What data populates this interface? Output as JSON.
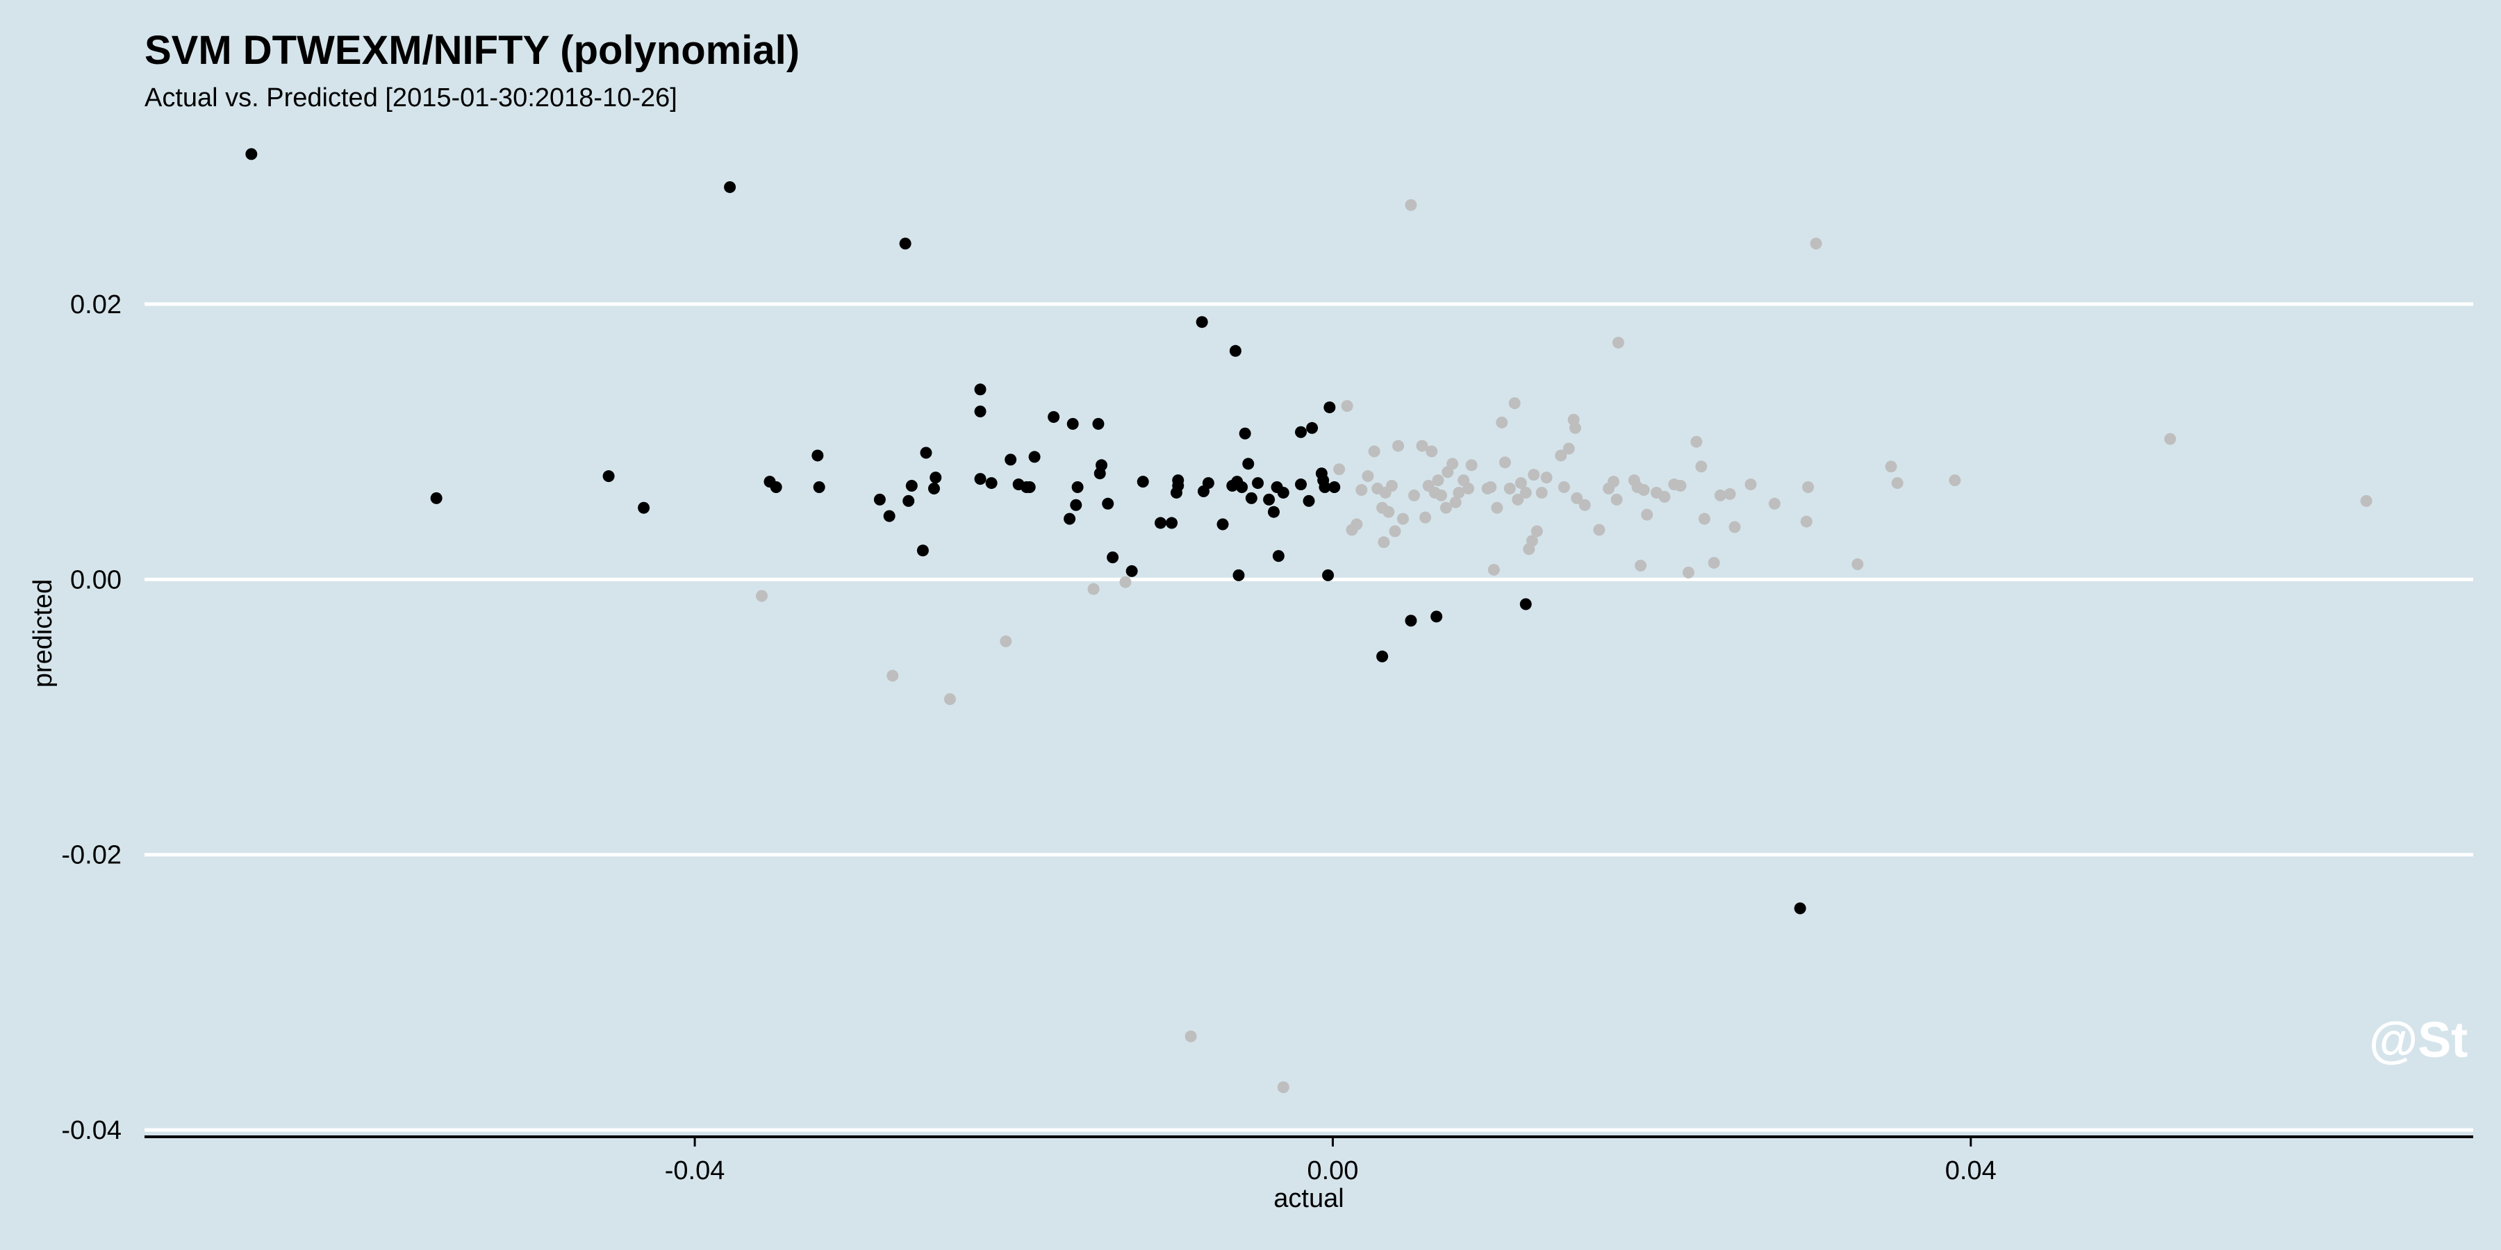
{
  "chart_data": {
    "type": "scatter",
    "title": "SVM DTWEXM/NIFTY (polynomial)",
    "subtitle": "Actual vs. Predicted [2015-01-30:2018-10-26]",
    "xlabel": "actual",
    "ylabel": "predicted",
    "watermark": "@St",
    "xlim": [
      -0.0745,
      0.0715
    ],
    "ylim": [
      -0.0405,
      0.0315
    ],
    "x_ticks": [
      -0.04,
      0.0,
      0.04
    ],
    "x_tick_labels": [
      "-0.04",
      "0.00",
      "0.04"
    ],
    "y_ticks": [
      -0.04,
      -0.02,
      0.0,
      0.02
    ],
    "y_tick_labels": [
      "-0.04",
      "-0.02",
      "0.00",
      "0.02"
    ],
    "grid": "horizontal",
    "colors": {
      "background": "#d5e4eb",
      "gridline": "#ffffff",
      "axis": "#000000",
      "text": "#000000",
      "watermark": "#ffffff"
    },
    "series": [
      {
        "color": "#000000",
        "points": [
          [
            -0.0678,
            0.0309
          ],
          [
            -0.0562,
            0.0059
          ],
          [
            -0.0454,
            0.0075
          ],
          [
            -0.0432,
            0.0052
          ],
          [
            -0.0378,
            0.0285
          ],
          [
            -0.0353,
            0.0071
          ],
          [
            -0.0349,
            0.0067
          ],
          [
            -0.0323,
            0.009
          ],
          [
            -0.0322,
            0.0067
          ],
          [
            -0.0284,
            0.0058
          ],
          [
            -0.0278,
            0.0046
          ],
          [
            -0.0268,
            0.0244
          ],
          [
            -0.0266,
            0.0057
          ],
          [
            -0.0264,
            0.0068
          ],
          [
            -0.0257,
            0.0021
          ],
          [
            -0.0255,
            0.0092
          ],
          [
            -0.025,
            0.0066
          ],
          [
            -0.0249,
            0.0074
          ],
          [
            -0.0221,
            0.0138
          ],
          [
            -0.0221,
            0.0122
          ],
          [
            -0.0221,
            0.0073
          ],
          [
            -0.0214,
            0.007
          ],
          [
            -0.0202,
            0.0087
          ],
          [
            -0.0197,
            0.0069
          ],
          [
            -0.0192,
            0.0067
          ],
          [
            -0.019,
            0.0067
          ],
          [
            -0.0187,
            0.0089
          ],
          [
            -0.0175,
            0.0118
          ],
          [
            -0.0165,
            0.0044
          ],
          [
            -0.0163,
            0.0113
          ],
          [
            -0.0161,
            0.0054
          ],
          [
            -0.016,
            0.0067
          ],
          [
            -0.0147,
            0.0113
          ],
          [
            -0.0146,
            0.0077
          ],
          [
            -0.0145,
            0.0083
          ],
          [
            -0.0141,
            0.0055
          ],
          [
            -0.0138,
            0.0016
          ],
          [
            -0.0126,
            0.0006
          ],
          [
            -0.0119,
            0.0071
          ],
          [
            -0.0108,
            0.0041
          ],
          [
            -0.0101,
            0.0041
          ],
          [
            -0.0098,
            0.0063
          ],
          [
            -0.0097,
            0.0068
          ],
          [
            -0.0097,
            0.0072
          ],
          [
            -0.0082,
            0.0187
          ],
          [
            -0.0081,
            0.0064
          ],
          [
            -0.0078,
            0.007
          ],
          [
            -0.0069,
            0.004
          ],
          [
            -0.0063,
            0.0068
          ],
          [
            -0.0061,
            0.0166
          ],
          [
            -0.006,
            0.0071
          ],
          [
            -0.0059,
            0.0003
          ],
          [
            -0.0057,
            0.0067
          ],
          [
            -0.0055,
            0.0106
          ],
          [
            -0.0053,
            0.0084
          ],
          [
            -0.0051,
            0.0059
          ],
          [
            -0.0047,
            0.007
          ],
          [
            -0.004,
            0.0058
          ],
          [
            -0.0037,
            0.0049
          ],
          [
            -0.0035,
            0.0067
          ],
          [
            -0.0034,
            0.0017
          ],
          [
            -0.0031,
            0.0063
          ],
          [
            -0.002,
            0.0107
          ],
          [
            -0.002,
            0.0069
          ],
          [
            -0.0015,
            0.0057
          ],
          [
            -0.0013,
            0.011
          ],
          [
            -0.0007,
            0.0077
          ],
          [
            -0.0006,
            0.0072
          ],
          [
            -0.0005,
            0.0067
          ],
          [
            -0.0003,
            0.0003
          ],
          [
            -0.0002,
            0.0125
          ],
          [
            0.0001,
            0.0067
          ],
          [
            0.0031,
            -0.0056
          ],
          [
            0.0049,
            -0.003
          ],
          [
            0.0065,
            -0.0027
          ],
          [
            0.0121,
            -0.0018
          ],
          [
            0.0293,
            -0.0239
          ]
        ]
      },
      {
        "color": "#bebebe",
        "points": [
          [
            -0.0358,
            -0.0012
          ],
          [
            -0.0276,
            -0.007
          ],
          [
            -0.024,
            -0.0087
          ],
          [
            -0.0205,
            -0.0045
          ],
          [
            -0.015,
            -0.0007
          ],
          [
            -0.013,
            -0.0002
          ],
          [
            -0.0089,
            -0.0332
          ],
          [
            -0.0031,
            -0.0369
          ],
          [
            0.0004,
            0.008
          ],
          [
            0.0009,
            0.0126
          ],
          [
            0.0012,
            0.0036
          ],
          [
            0.0015,
            0.004
          ],
          [
            0.0018,
            0.0065
          ],
          [
            0.0022,
            0.0075
          ],
          [
            0.0026,
            0.0093
          ],
          [
            0.0028,
            0.0066
          ],
          [
            0.0031,
            0.0052
          ],
          [
            0.0032,
            0.0027
          ],
          [
            0.0033,
            0.0063
          ],
          [
            0.0035,
            0.0049
          ],
          [
            0.0037,
            0.0068
          ],
          [
            0.0039,
            0.0035
          ],
          [
            0.0041,
            0.0097
          ],
          [
            0.0044,
            0.0044
          ],
          [
            0.0049,
            0.0272
          ],
          [
            0.0051,
            0.0061
          ],
          [
            0.0056,
            0.0097
          ],
          [
            0.0058,
            0.0045
          ],
          [
            0.006,
            0.0068
          ],
          [
            0.0062,
            0.0093
          ],
          [
            0.0064,
            0.0063
          ],
          [
            0.0066,
            0.0072
          ],
          [
            0.0068,
            0.0061
          ],
          [
            0.0071,
            0.0052
          ],
          [
            0.0072,
            0.0078
          ],
          [
            0.0075,
            0.0084
          ],
          [
            0.0077,
            0.0056
          ],
          [
            0.0079,
            0.0063
          ],
          [
            0.0082,
            0.0072
          ],
          [
            0.0085,
            0.0066
          ],
          [
            0.0087,
            0.0083
          ],
          [
            0.0097,
            0.0066
          ],
          [
            0.0099,
            0.0067
          ],
          [
            0.0101,
            0.0007
          ],
          [
            0.0103,
            0.0052
          ],
          [
            0.0106,
            0.0114
          ],
          [
            0.0108,
            0.0085
          ],
          [
            0.0111,
            0.0066
          ],
          [
            0.0114,
            0.0128
          ],
          [
            0.0116,
            0.0058
          ],
          [
            0.0118,
            0.007
          ],
          [
            0.0121,
            0.0063
          ],
          [
            0.0123,
            0.0022
          ],
          [
            0.0125,
            0.0028
          ],
          [
            0.0126,
            0.0076
          ],
          [
            0.0128,
            0.0035
          ],
          [
            0.0131,
            0.0063
          ],
          [
            0.0134,
            0.0074
          ],
          [
            0.0143,
            0.009
          ],
          [
            0.0145,
            0.0067
          ],
          [
            0.0148,
            0.0095
          ],
          [
            0.0151,
            0.0116
          ],
          [
            0.0152,
            0.011
          ],
          [
            0.0153,
            0.0059
          ],
          [
            0.0158,
            0.0054
          ],
          [
            0.0167,
            0.0036
          ],
          [
            0.0173,
            0.0066
          ],
          [
            0.0176,
            0.0071
          ],
          [
            0.0178,
            0.0058
          ],
          [
            0.0179,
            0.0172
          ],
          [
            0.0189,
            0.0072
          ],
          [
            0.0191,
            0.0067
          ],
          [
            0.0193,
            0.001
          ],
          [
            0.0195,
            0.0065
          ],
          [
            0.0197,
            0.0047
          ],
          [
            0.0203,
            0.0063
          ],
          [
            0.0208,
            0.006
          ],
          [
            0.0214,
            0.0069
          ],
          [
            0.0218,
            0.0068
          ],
          [
            0.0223,
            0.0005
          ],
          [
            0.0228,
            0.01
          ],
          [
            0.0231,
            0.0082
          ],
          [
            0.0233,
            0.0044
          ],
          [
            0.0239,
            0.0012
          ],
          [
            0.0243,
            0.0061
          ],
          [
            0.0249,
            0.0062
          ],
          [
            0.0252,
            0.0038
          ],
          [
            0.0262,
            0.0069
          ],
          [
            0.0277,
            0.0055
          ],
          [
            0.0297,
            0.0042
          ],
          [
            0.0298,
            0.0067
          ],
          [
            0.0303,
            0.0244
          ],
          [
            0.0329,
            0.0011
          ],
          [
            0.035,
            0.0082
          ],
          [
            0.0354,
            0.007
          ],
          [
            0.039,
            0.0072
          ],
          [
            0.0525,
            0.0102
          ],
          [
            0.0648,
            0.0057
          ]
        ]
      }
    ]
  }
}
